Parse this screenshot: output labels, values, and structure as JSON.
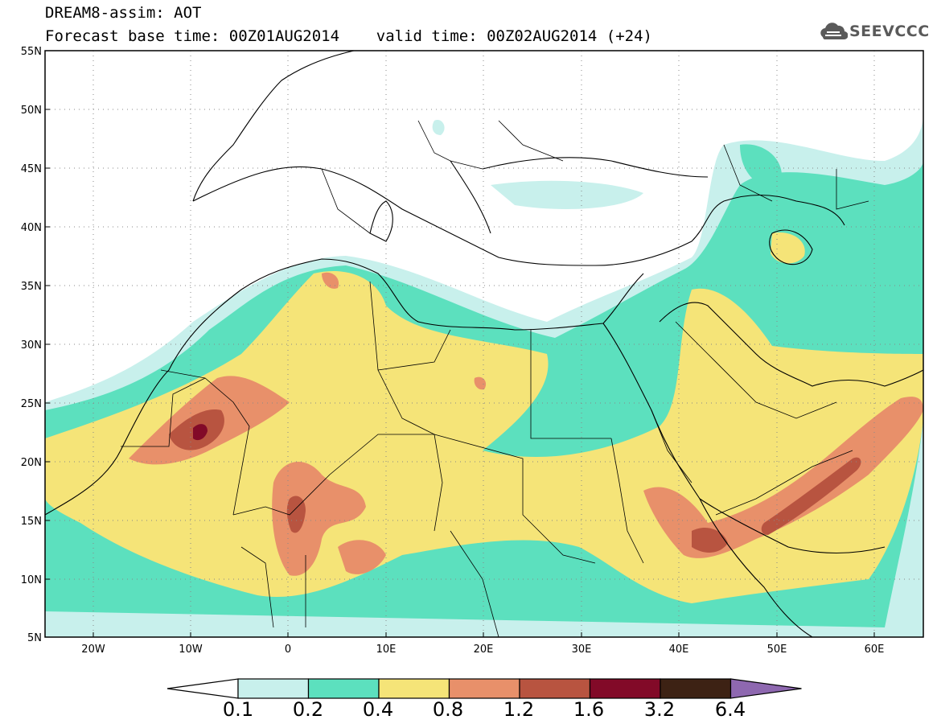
{
  "header": {
    "line1": "DREAM8-assim: AOT",
    "line2": "Forecast base time: 00Z01AUG2014    valid time: 00Z02AUG2014 (+24)"
  },
  "logo": {
    "text": "SEEVCCC",
    "icon": "cloud-logo-icon"
  },
  "map": {
    "variable": "AOT",
    "lon_range": [
      -25,
      65
    ],
    "lat_range": [
      5,
      55
    ],
    "lat_labels": [
      "55N",
      "50N",
      "45N",
      "40N",
      "35N",
      "30N",
      "25N",
      "20N",
      "15N",
      "10N",
      "5N"
    ],
    "lon_labels": [
      "20W",
      "10W",
      "0",
      "10E",
      "20E",
      "30E",
      "40E",
      "50E",
      "60E"
    ],
    "grid": "dotted"
  },
  "colorbar": {
    "labels": [
      "0.1",
      "0.2",
      "0.4",
      "0.8",
      "1.2",
      "1.6",
      "3.2",
      "6.4"
    ],
    "colors": [
      "#ffffff",
      "#c8f0ec",
      "#5ce0be",
      "#f5e478",
      "#e8906a",
      "#b85440",
      "#820a28",
      "#3d2214",
      "#8e68b0"
    ]
  }
}
